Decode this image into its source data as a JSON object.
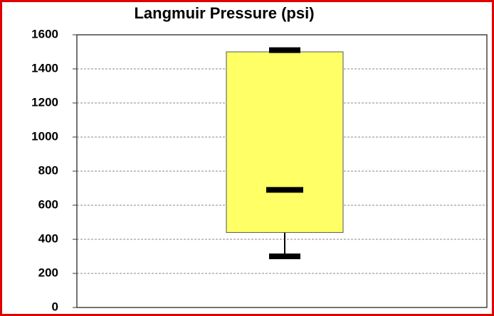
{
  "chart_data": {
    "type": "box",
    "title": "Langmuir Pressure (psi)",
    "min": 300,
    "q1": 440,
    "median": 690,
    "q3": 1500,
    "max": 1510,
    "color": "#ffff66",
    "ylim": [
      0,
      1600
    ],
    "yticks": [
      0,
      200,
      400,
      600,
      800,
      1000,
      1200,
      1400,
      1600
    ],
    "grid": true
  }
}
